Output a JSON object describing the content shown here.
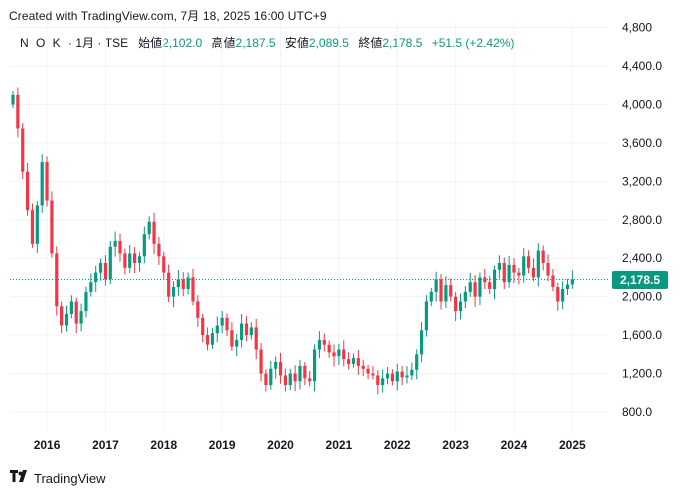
{
  "header": {
    "created_text": "Created with TradingView.com, 7月 18, 2025 16:00 UTC+9"
  },
  "legend": {
    "symbol": "N O K",
    "interval": "1月",
    "exchange": "TSE",
    "open_label": "始値",
    "open_value": "2,102.0",
    "high_label": "高値",
    "high_value": "2,187.5",
    "low_label": "安値",
    "low_value": "2,089.5",
    "close_label": "終値",
    "close_value": "2,178.5",
    "change": "+51.5 (+2.42%)"
  },
  "colors": {
    "up": "#089981",
    "down": "#f23645",
    "grid": "#f0f3fa",
    "text": "#131722"
  },
  "last_price_label": "2,178.5",
  "footer": {
    "brand": "TradingView",
    "logo_icon": "tradingview-logo-icon"
  },
  "chart_data": {
    "type": "candlestick",
    "title": "",
    "interval": "monthly",
    "y_ticks": [
      "800.0",
      "1,200.0",
      "1,600.0",
      "2,000.0",
      "2,400.0",
      "2,800.0",
      "3,200.0",
      "3,600.0",
      "4,000.0",
      "4,400.0",
      "4,800"
    ],
    "x_ticks": [
      "2016",
      "2017",
      "2018",
      "2019",
      "2020",
      "2021",
      "2022",
      "2023",
      "2024",
      "2025"
    ],
    "ylim": [
      600,
      4800
    ],
    "last_price": 2178.5,
    "grid": true,
    "closes": [
      4100,
      3750,
      3300,
      2900,
      2550,
      2950,
      3400,
      3000,
      2450,
      1900,
      1700,
      1820,
      1950,
      1720,
      1850,
      2050,
      2150,
      2250,
      2350,
      2180,
      2520,
      2580,
      2450,
      2300,
      2450,
      2350,
      2420,
      2650,
      2780,
      2550,
      2420,
      2250,
      2000,
      2100,
      2180,
      2080,
      2200,
      1950,
      1780,
      1600,
      1500,
      1620,
      1700,
      1780,
      1650,
      1480,
      1550,
      1720,
      1600,
      1680,
      1450,
      1200,
      1080,
      1250,
      1320,
      1180,
      1080,
      1200,
      1120,
      1280,
      1150,
      1120,
      1450,
      1550,
      1500,
      1420,
      1380,
      1450,
      1350,
      1300,
      1360,
      1280,
      1250,
      1200,
      1180,
      1080,
      1150,
      1200,
      1120,
      1220,
      1160,
      1180,
      1240,
      1400,
      1650,
      1950,
      2050,
      2180,
      1950,
      2120,
      2000,
      1850,
      1950,
      2050,
      2150,
      2000,
      2200,
      2150,
      2080,
      2280,
      2350,
      2150,
      2330,
      2250,
      2220,
      2420,
      2300,
      2200,
      2480,
      2350,
      2220,
      2100,
      1950,
      2080,
      2127,
      2178.5
    ]
  }
}
